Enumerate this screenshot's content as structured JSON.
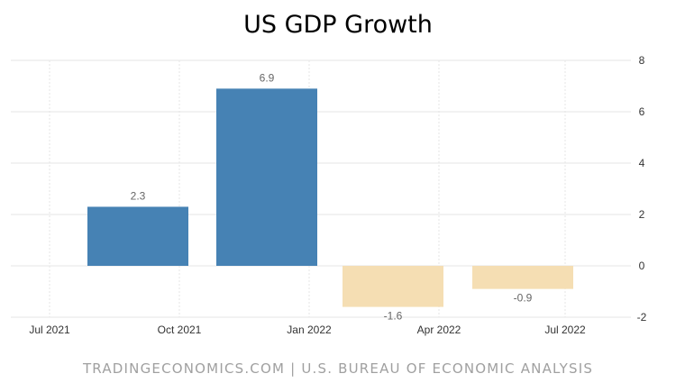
{
  "chart_data": {
    "type": "bar",
    "title": "US GDP Growth",
    "xlabel": "",
    "ylabel": "",
    "ylim": [
      -2,
      8
    ],
    "yticks": [
      -2,
      0,
      2,
      4,
      6,
      8
    ],
    "x_ticks": [
      "Jul 2021",
      "Oct 2021",
      "Jan 2022",
      "Apr 2022",
      "Jul 2022"
    ],
    "bars": [
      {
        "value": 2.3,
        "label": "2.3",
        "color": "#4682b4"
      },
      {
        "value": 6.9,
        "label": "6.9",
        "color": "#4682b4"
      },
      {
        "value": -1.6,
        "label": "-1.6",
        "color": "#f5deb3"
      },
      {
        "value": -0.9,
        "label": "-0.9",
        "color": "#f5deb3"
      }
    ],
    "grid": true,
    "y_axis_position": "right"
  },
  "source": "TRADINGECONOMICS.COM | U.S. BUREAU OF ECONOMIC ANALYSIS"
}
